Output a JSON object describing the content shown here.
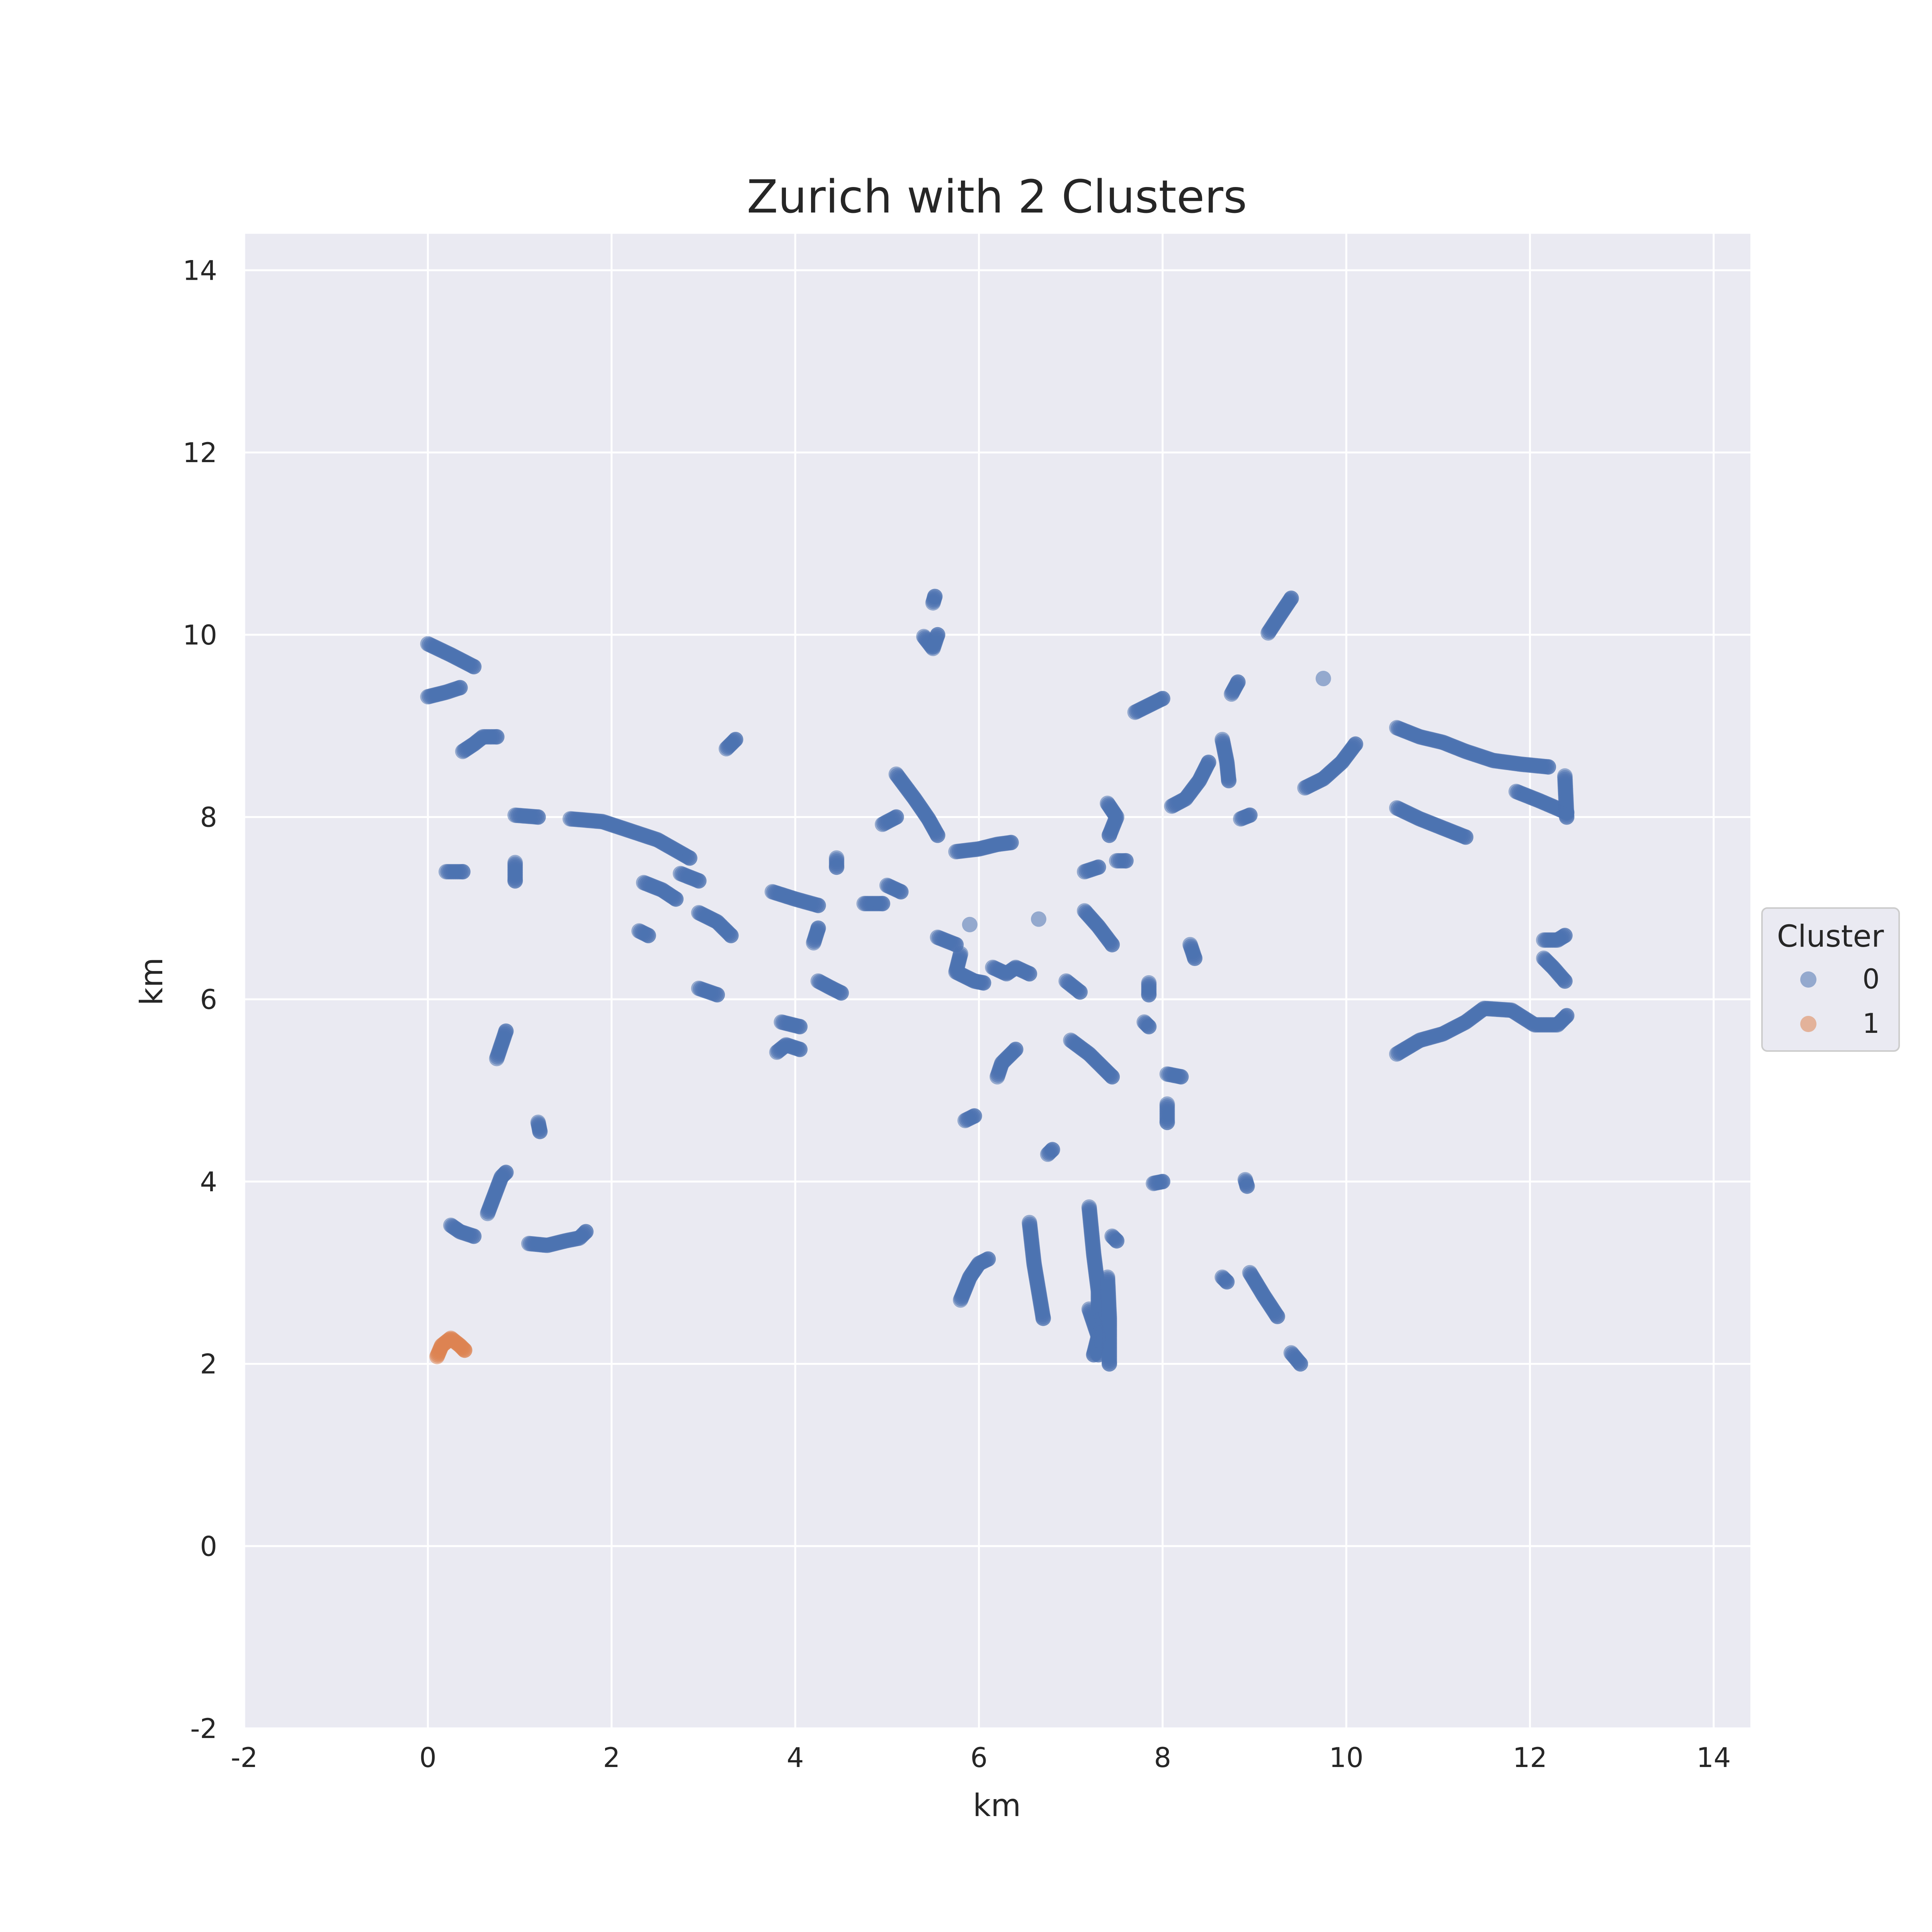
{
  "chart_data": {
    "type": "scatter",
    "title": "Zurich with 2 Clusters",
    "xlabel": "km",
    "ylabel": "km",
    "xlim": [
      -2,
      14.4
    ],
    "ylim": [
      -2,
      14.4
    ],
    "xticks": [
      -2,
      0,
      2,
      4,
      6,
      8,
      10,
      12,
      14
    ],
    "yticks": [
      -2,
      0,
      2,
      4,
      6,
      8,
      10,
      12,
      14
    ],
    "grid": true,
    "legend": {
      "title": "Cluster",
      "placement": "right"
    },
    "series": [
      {
        "name": "0",
        "color": "#4c72b0",
        "tracks": [
          [
            [
              0.0,
              9.9
            ],
            [
              0.25,
              9.78
            ],
            [
              0.5,
              9.65
            ]
          ],
          [
            [
              0.0,
              9.32
            ],
            [
              0.2,
              9.37
            ],
            [
              0.35,
              9.42
            ]
          ],
          [
            [
              0.38,
              8.72
            ],
            [
              0.5,
              8.8
            ],
            [
              0.6,
              8.88
            ],
            [
              0.75,
              8.88
            ]
          ],
          [
            [
              0.95,
              8.02
            ],
            [
              1.2,
              8.0
            ]
          ],
          [
            [
              1.55,
              7.98
            ],
            [
              1.9,
              7.95
            ],
            [
              2.2,
              7.85
            ],
            [
              2.5,
              7.75
            ],
            [
              2.85,
              7.55
            ]
          ],
          [
            [
              0.2,
              7.4
            ],
            [
              0.38,
              7.4
            ]
          ],
          [
            [
              0.95,
              7.5
            ],
            [
              0.95,
              7.3
            ]
          ],
          [
            [
              2.35,
              7.28
            ],
            [
              2.55,
              7.2
            ],
            [
              2.7,
              7.1
            ]
          ],
          [
            [
              2.75,
              7.38
            ],
            [
              2.95,
              7.3
            ]
          ],
          [
            [
              2.95,
              6.95
            ],
            [
              3.15,
              6.85
            ],
            [
              3.3,
              6.7
            ]
          ],
          [
            [
              2.3,
              6.75
            ],
            [
              2.4,
              6.7
            ]
          ],
          [
            [
              2.95,
              6.12
            ],
            [
              3.15,
              6.05
            ]
          ],
          [
            [
              3.25,
              8.75
            ],
            [
              3.35,
              8.85
            ]
          ],
          [
            [
              0.75,
              5.35
            ],
            [
              0.85,
              5.65
            ]
          ],
          [
            [
              1.2,
              4.65
            ],
            [
              1.22,
              4.55
            ]
          ],
          [
            [
              0.65,
              3.65
            ],
            [
              0.8,
              4.05
            ],
            [
              0.85,
              4.1
            ]
          ],
          [
            [
              0.25,
              3.52
            ],
            [
              0.35,
              3.45
            ],
            [
              0.5,
              3.4
            ]
          ],
          [
            [
              1.1,
              3.32
            ],
            [
              1.3,
              3.3
            ],
            [
              1.5,
              3.35
            ],
            [
              1.65,
              3.38
            ],
            [
              1.72,
              3.45
            ]
          ],
          [
            [
              3.75,
              7.18
            ],
            [
              4.0,
              7.1
            ],
            [
              4.25,
              7.03
            ]
          ],
          [
            [
              4.2,
              6.62
            ],
            [
              4.25,
              6.78
            ]
          ],
          [
            [
              4.45,
              7.55
            ],
            [
              4.45,
              7.45
            ]
          ],
          [
            [
              4.25,
              6.2
            ],
            [
              4.4,
              6.12
            ],
            [
              4.5,
              6.07
            ]
          ],
          [
            [
              3.85,
              5.75
            ],
            [
              4.05,
              5.7
            ]
          ],
          [
            [
              3.8,
              5.42
            ],
            [
              3.9,
              5.5
            ],
            [
              4.05,
              5.45
            ]
          ],
          [
            [
              4.75,
              7.05
            ],
            [
              4.95,
              7.05
            ]
          ],
          [
            [
              4.95,
              7.92
            ],
            [
              5.1,
              8.0
            ]
          ],
          [
            [
              5.0,
              7.25
            ],
            [
              5.15,
              7.18
            ]
          ],
          [
            [
              5.1,
              8.47
            ],
            [
              5.3,
              8.2
            ],
            [
              5.45,
              7.98
            ],
            [
              5.55,
              7.8
            ]
          ],
          [
            [
              5.4,
              9.98
            ],
            [
              5.5,
              9.85
            ],
            [
              5.55,
              10.0
            ]
          ],
          [
            [
              5.5,
              10.35
            ],
            [
              5.52,
              10.42
            ]
          ],
          [
            [
              5.75,
              7.62
            ],
            [
              6.0,
              7.65
            ],
            [
              6.2,
              7.7
            ],
            [
              6.35,
              7.72
            ]
          ],
          [
            [
              5.55,
              6.68
            ],
            [
              5.75,
              6.6
            ]
          ],
          [
            [
              5.9,
              6.82
            ]
          ],
          [
            [
              5.8,
              6.5
            ],
            [
              5.75,
              6.3
            ],
            [
              5.95,
              6.2
            ],
            [
              6.05,
              6.18
            ]
          ],
          [
            [
              6.15,
              6.35
            ],
            [
              6.3,
              6.28
            ],
            [
              6.4,
              6.35
            ],
            [
              6.55,
              6.28
            ]
          ],
          [
            [
              6.65,
              6.88
            ]
          ],
          [
            [
              5.85,
              4.67
            ],
            [
              5.95,
              4.72
            ]
          ],
          [
            [
              6.2,
              5.15
            ],
            [
              6.25,
              5.3
            ],
            [
              6.4,
              5.45
            ]
          ],
          [
            [
              6.75,
              4.3
            ],
            [
              6.8,
              4.35
            ]
          ],
          [
            [
              5.8,
              2.7
            ],
            [
              5.9,
              2.95
            ],
            [
              6.0,
              3.1
            ],
            [
              6.1,
              3.15
            ]
          ],
          [
            [
              6.55,
              3.55
            ],
            [
              6.6,
              3.1
            ],
            [
              6.7,
              2.5
            ]
          ],
          [
            [
              6.95,
              6.2
            ],
            [
              7.1,
              6.08
            ]
          ],
          [
            [
              7.15,
              6.97
            ],
            [
              7.3,
              6.8
            ],
            [
              7.45,
              6.6
            ]
          ],
          [
            [
              7.15,
              7.4
            ],
            [
              7.3,
              7.45
            ]
          ],
          [
            [
              7.4,
              8.15
            ],
            [
              7.5,
              8.0
            ],
            [
              7.42,
              7.8
            ]
          ],
          [
            [
              7.5,
              7.52
            ],
            [
              7.6,
              7.52
            ]
          ],
          [
            [
              7.0,
              5.55
            ],
            [
              7.2,
              5.4
            ],
            [
              7.35,
              5.25
            ],
            [
              7.45,
              5.15
            ]
          ],
          [
            [
              7.2,
              3.72
            ],
            [
              7.25,
              3.2
            ],
            [
              7.3,
              2.8
            ],
            [
              7.3,
              2.1
            ]
          ],
          [
            [
              7.4,
              2.95
            ],
            [
              7.42,
              2.5
            ],
            [
              7.42,
              2.0
            ]
          ],
          [
            [
              7.45,
              3.4
            ],
            [
              7.5,
              3.35
            ]
          ],
          [
            [
              7.2,
              2.6
            ],
            [
              7.3,
              2.3
            ],
            [
              7.25,
              2.1
            ]
          ],
          [
            [
              7.7,
              9.15
            ],
            [
              7.9,
              9.25
            ],
            [
              8.0,
              9.3
            ]
          ],
          [
            [
              7.85,
              6.18
            ],
            [
              7.85,
              6.05
            ]
          ],
          [
            [
              7.8,
              5.75
            ],
            [
              7.85,
              5.7
            ]
          ],
          [
            [
              8.05,
              5.18
            ],
            [
              8.2,
              5.15
            ]
          ],
          [
            [
              8.05,
              4.85
            ],
            [
              8.05,
              4.65
            ]
          ],
          [
            [
              7.9,
              3.98
            ],
            [
              8.0,
              4.0
            ]
          ],
          [
            [
              8.1,
              8.12
            ],
            [
              8.25,
              8.2
            ],
            [
              8.4,
              8.4
            ],
            [
              8.5,
              8.6
            ]
          ],
          [
            [
              8.65,
              8.85
            ],
            [
              8.7,
              8.6
            ],
            [
              8.72,
              8.4
            ]
          ],
          [
            [
              8.75,
              9.35
            ],
            [
              8.82,
              9.48
            ]
          ],
          [
            [
              8.85,
              7.98
            ],
            [
              8.95,
              8.02
            ]
          ],
          [
            [
              8.3,
              6.6
            ],
            [
              8.35,
              6.45
            ]
          ],
          [
            [
              8.65,
              2.95
            ],
            [
              8.7,
              2.9
            ]
          ],
          [
            [
              8.9,
              4.02
            ],
            [
              8.92,
              3.95
            ]
          ],
          [
            [
              8.95,
              3.0
            ],
            [
              9.1,
              2.75
            ],
            [
              9.25,
              2.52
            ]
          ],
          [
            [
              9.4,
              2.12
            ],
            [
              9.5,
              2.0
            ]
          ],
          [
            [
              9.15,
              10.02
            ],
            [
              9.3,
              10.25
            ],
            [
              9.4,
              10.4
            ]
          ],
          [
            [
              9.75,
              9.52
            ]
          ],
          [
            [
              9.55,
              8.32
            ],
            [
              9.75,
              8.42
            ],
            [
              9.95,
              8.6
            ],
            [
              10.1,
              8.8
            ]
          ],
          [
            [
              10.55,
              8.98
            ],
            [
              10.8,
              8.88
            ],
            [
              11.05,
              8.82
            ],
            [
              11.3,
              8.72
            ],
            [
              11.6,
              8.62
            ],
            [
              11.9,
              8.58
            ],
            [
              12.2,
              8.55
            ]
          ],
          [
            [
              10.55,
              8.1
            ],
            [
              10.8,
              7.98
            ],
            [
              11.05,
              7.88
            ],
            [
              11.3,
              7.78
            ]
          ],
          [
            [
              11.85,
              8.28
            ],
            [
              12.1,
              8.18
            ],
            [
              12.4,
              8.05
            ]
          ],
          [
            [
              12.38,
              8.45
            ],
            [
              12.4,
              8.0
            ]
          ],
          [
            [
              12.15,
              6.65
            ],
            [
              12.3,
              6.65
            ],
            [
              12.38,
              6.7
            ]
          ],
          [
            [
              12.15,
              6.45
            ],
            [
              12.25,
              6.35
            ],
            [
              12.38,
              6.2
            ]
          ],
          [
            [
              10.55,
              5.4
            ],
            [
              10.8,
              5.55
            ],
            [
              11.05,
              5.62
            ],
            [
              11.3,
              5.75
            ],
            [
              11.5,
              5.9
            ],
            [
              11.8,
              5.88
            ],
            [
              12.05,
              5.72
            ],
            [
              12.3,
              5.72
            ],
            [
              12.4,
              5.82
            ]
          ]
        ]
      },
      {
        "name": "1",
        "color": "#dd8452",
        "tracks": [
          [
            [
              0.1,
              2.08
            ],
            [
              0.15,
              2.2
            ],
            [
              0.25,
              2.28
            ],
            [
              0.35,
              2.2
            ],
            [
              0.4,
              2.15
            ]
          ]
        ]
      }
    ]
  }
}
